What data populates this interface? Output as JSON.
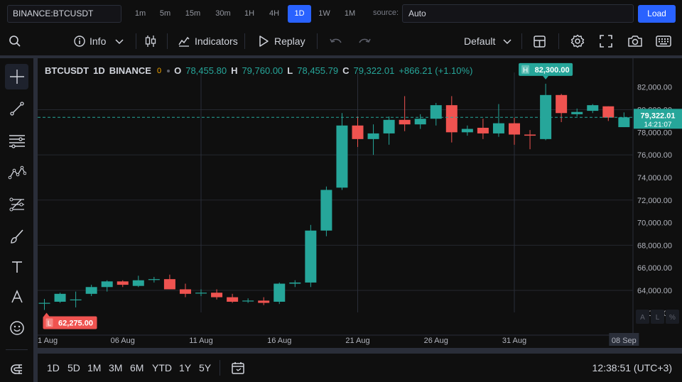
{
  "topbar": {
    "symbol": "BINANCE:BTCUSDT",
    "timeframes": [
      "1m",
      "5m",
      "15m",
      "30m",
      "1H",
      "4H",
      "1D",
      "1W",
      "1M"
    ],
    "active_timeframe": "1D",
    "source_label": "source:",
    "source_value": "Auto",
    "load_label": "Load"
  },
  "toolbar": {
    "info_label": "Info",
    "indicators_label": "Indicators",
    "replay_label": "Replay",
    "layout_label": "Default"
  },
  "legend": {
    "symbol": "BTCUSDT",
    "interval": "1D",
    "exchange": "BINANCE",
    "status": "0",
    "o_label": "O",
    "o": "78,455.80",
    "h_label": "H",
    "h": "79,760.00",
    "l_label": "L",
    "l": "78,455.79",
    "c_label": "C",
    "c": "79,322.01",
    "change": "+866.21 (+1.10%)"
  },
  "price_tag": {
    "price": "79,322.01",
    "countdown": "14:21:07"
  },
  "high_marker": {
    "label": "H",
    "price": "82,300.00"
  },
  "low_marker": {
    "label": "L",
    "price": "62,275.00"
  },
  "scale_buttons": [
    "A",
    "L",
    "%"
  ],
  "colors": {
    "up": "#26a69a",
    "down": "#ef5350",
    "accent": "#2962ff",
    "bg": "#0f0f0f",
    "grid": "#2a2e39"
  },
  "chart_data": {
    "type": "candlestick",
    "y_ticks": [
      82000,
      80000,
      78000,
      76000,
      74000,
      72000,
      70000,
      68000,
      66000,
      64000,
      62000
    ],
    "y_tick_labels": [
      "82,000.00",
      "80,000.00",
      "78,000.00",
      "76,000.00",
      "74,000.00",
      "72,000.00",
      "70,000.00",
      "68,000.00",
      "66,000.00",
      "64,000.00",
      "62,000.00"
    ],
    "x_tick_labels": [
      "1 Aug",
      "06 Aug",
      "11 Aug",
      "16 Aug",
      "21 Aug",
      "26 Aug",
      "31 Aug",
      "08 Sep"
    ],
    "ylim": [
      61300,
      83300
    ],
    "candles": [
      {
        "o": 62900,
        "h": 63250,
        "l": 62275,
        "c": 62900
      },
      {
        "o": 63000,
        "h": 63800,
        "l": 62900,
        "c": 63700
      },
      {
        "o": 63200,
        "h": 63900,
        "l": 62500,
        "c": 63200
      },
      {
        "o": 63700,
        "h": 64500,
        "l": 63500,
        "c": 64300
      },
      {
        "o": 64300,
        "h": 64900,
        "l": 63900,
        "c": 64800
      },
      {
        "o": 64800,
        "h": 64900,
        "l": 64300,
        "c": 64500
      },
      {
        "o": 64400,
        "h": 65300,
        "l": 64300,
        "c": 64900
      },
      {
        "o": 65000,
        "h": 65200,
        "l": 64700,
        "c": 65000
      },
      {
        "o": 65000,
        "h": 65400,
        "l": 64100,
        "c": 64100
      },
      {
        "o": 64100,
        "h": 64600,
        "l": 63400,
        "c": 63700
      },
      {
        "o": 63800,
        "h": 64100,
        "l": 63500,
        "c": 63800
      },
      {
        "o": 63800,
        "h": 64100,
        "l": 63200,
        "c": 63400
      },
      {
        "o": 63400,
        "h": 63700,
        "l": 62900,
        "c": 63000
      },
      {
        "o": 63100,
        "h": 63300,
        "l": 62900,
        "c": 63100
      },
      {
        "o": 63100,
        "h": 63400,
        "l": 62700,
        "c": 62900
      },
      {
        "o": 63000,
        "h": 64700,
        "l": 62800,
        "c": 64600
      },
      {
        "o": 64600,
        "h": 64900,
        "l": 64300,
        "c": 64700
      },
      {
        "o": 64700,
        "h": 69800,
        "l": 64300,
        "c": 69300
      },
      {
        "o": 69300,
        "h": 73200,
        "l": 68800,
        "c": 72900
      },
      {
        "o": 73100,
        "h": 79700,
        "l": 72900,
        "c": 78600
      },
      {
        "o": 78600,
        "h": 79400,
        "l": 76700,
        "c": 77400
      },
      {
        "o": 77400,
        "h": 78700,
        "l": 76000,
        "c": 77900
      },
      {
        "o": 77900,
        "h": 79400,
        "l": 76900,
        "c": 79100
      },
      {
        "o": 79100,
        "h": 81200,
        "l": 78100,
        "c": 78700
      },
      {
        "o": 78700,
        "h": 79600,
        "l": 78300,
        "c": 79200
      },
      {
        "o": 79200,
        "h": 80600,
        "l": 78600,
        "c": 80400
      },
      {
        "o": 80400,
        "h": 81200,
        "l": 77100,
        "c": 78000
      },
      {
        "o": 78000,
        "h": 78600,
        "l": 77700,
        "c": 78300
      },
      {
        "o": 78400,
        "h": 79200,
        "l": 77400,
        "c": 77900
      },
      {
        "o": 77900,
        "h": 80500,
        "l": 77600,
        "c": 78800
      },
      {
        "o": 78800,
        "h": 79300,
        "l": 76900,
        "c": 77800
      },
      {
        "o": 77800,
        "h": 78200,
        "l": 76500,
        "c": 77700
      },
      {
        "o": 77400,
        "h": 82300,
        "l": 77300,
        "c": 81300
      },
      {
        "o": 81300,
        "h": 81400,
        "l": 78900,
        "c": 79700
      },
      {
        "o": 79600,
        "h": 80100,
        "l": 79400,
        "c": 79800
      },
      {
        "o": 79900,
        "h": 80500,
        "l": 79700,
        "c": 80400
      },
      {
        "o": 80300,
        "h": 80300,
        "l": 79000,
        "c": 79300
      },
      {
        "o": 78456,
        "h": 79760,
        "l": 78456,
        "c": 79322
      }
    ]
  },
  "bottombar": {
    "ranges": [
      "1D",
      "5D",
      "1M",
      "3M",
      "6M",
      "YTD",
      "1Y",
      "5Y"
    ],
    "clock": "12:38:51 (UTC+3)"
  }
}
